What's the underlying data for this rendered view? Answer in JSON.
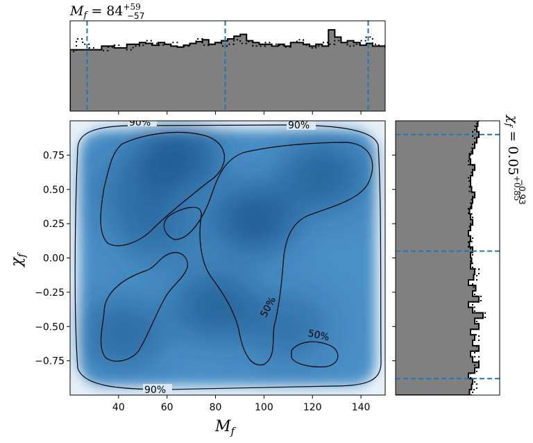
{
  "chart_data": [
    {
      "type": "heatmap",
      "panel": "joint",
      "xlabel": "M_f",
      "ylabel": "χ_f",
      "xlim": [
        20,
        150
      ],
      "ylim": [
        -1,
        1
      ],
      "xticks": [
        40,
        60,
        80,
        100,
        120,
        140
      ],
      "yticks": [
        -0.75,
        -0.5,
        -0.25,
        0.0,
        0.25,
        0.5,
        0.75
      ],
      "xtick_labels": [
        "40",
        "60",
        "80",
        "100",
        "120",
        "140"
      ],
      "ytick_labels": [
        "−0.75",
        "−0.50",
        "−0.25",
        "0.00",
        "0.25",
        "0.50",
        "0.75"
      ],
      "colormap": "Blues",
      "density_peaks": [
        {
          "x": 64,
          "y": 0.73,
          "weight": 1.0
        },
        {
          "x": 96,
          "y": 0.28,
          "weight": 1.0
        },
        {
          "x": 124,
          "y": 0.6,
          "weight": 0.85
        },
        {
          "x": 80,
          "y": -0.35,
          "weight": 0.85
        },
        {
          "x": 42,
          "y": -0.55,
          "weight": 0.7
        },
        {
          "x": 56,
          "y": 0.2,
          "weight": 0.6
        },
        {
          "x": 110,
          "y": -0.5,
          "weight": 0.55
        },
        {
          "x": 45,
          "y": 0.5,
          "weight": 0.5
        }
      ],
      "contour_levels": [
        "50%",
        "90%"
      ],
      "contour_labels": [
        "90%",
        "90%",
        "90%",
        "50%",
        "50%"
      ]
    },
    {
      "type": "histogram",
      "panel": "top-marginal",
      "variable": "M_f",
      "title": "M_f = 84^{+59}_{-57}",
      "title_parts": {
        "base": "M",
        "sub": "f",
        "eq": " = 84",
        "sup": "+59",
        "inf": "−57"
      },
      "xlim": [
        20,
        150
      ],
      "bins_start": 20,
      "bin_width": 2.6,
      "series": [
        {
          "style": "solid",
          "fill": "#808080",
          "values": [
            0.68,
            0.68,
            0.68,
            0.68,
            0.68,
            0.72,
            0.72,
            0.7,
            0.7,
            0.74,
            0.74,
            0.76,
            0.75,
            0.73,
            0.76,
            0.74,
            0.72,
            0.71,
            0.73,
            0.75,
            0.77,
            0.79,
            0.74,
            0.76,
            0.78,
            0.8,
            0.83,
            0.85,
            0.78,
            0.76,
            0.74,
            0.74,
            0.72,
            0.74,
            0.72,
            0.76,
            0.76,
            0.74,
            0.72,
            0.74,
            0.72,
            0.9,
            0.82,
            0.76,
            0.78,
            0.76,
            0.73,
            0.75,
            0.72,
            0.72,
            0.7,
            0.76,
            0.74,
            0.72,
            0.7,
            0.69,
            0.67,
            0.7,
            0.68,
            0.69
          ]
        },
        {
          "style": "dotted",
          "values": [
            0.66,
            0.8,
            0.74,
            0.7,
            0.68,
            0.67,
            0.71,
            0.73,
            0.7,
            0.68,
            0.72,
            0.73,
            0.78,
            0.75,
            0.73,
            0.74,
            0.76,
            0.71,
            0.72,
            0.75,
            0.8,
            0.73,
            0.74,
            0.76,
            0.72,
            0.74,
            0.79,
            0.75,
            0.77,
            0.72,
            0.72,
            0.76,
            0.74,
            0.73,
            0.71,
            0.76,
            0.79,
            0.73,
            0.7,
            0.72,
            0.76,
            0.74,
            0.78,
            0.76,
            0.72,
            0.74,
            0.78,
            0.82,
            0.74,
            0.72,
            0.74,
            0.84,
            0.76,
            0.72,
            0.74,
            0.72,
            0.7,
            0.7,
            0.72,
            0.69
          ]
        }
      ],
      "ylim": [
        0,
        1
      ],
      "quantile_lines": [
        27,
        84,
        143
      ]
    },
    {
      "type": "histogram",
      "panel": "right-marginal",
      "variable": "χ_f",
      "title": "χ_f = 0.05^{+0.85}_{-0.93}",
      "title_parts": {
        "base": "χ",
        "sub": "f",
        "eq": " = 0.05",
        "sup": "+0.85",
        "inf": "−0.93"
      },
      "ylim": [
        -1,
        1
      ],
      "bins_start": -1,
      "bin_width": 0.04,
      "series": [
        {
          "style": "solid",
          "fill": "#808080",
          "values": [
            0.71,
            0.73,
            0.74,
            0.7,
            0.76,
            0.8,
            0.74,
            0.72,
            0.8,
            0.74,
            0.76,
            0.72,
            0.8,
            0.76,
            0.84,
            0.74,
            0.7,
            0.8,
            0.74,
            0.77,
            0.7,
            0.75,
            0.76,
            0.72,
            0.73,
            0.72,
            0.74,
            0.71,
            0.72,
            0.7,
            0.72,
            0.74,
            0.72,
            0.71,
            0.73,
            0.74,
            0.76,
            0.73,
            0.72,
            0.72,
            0.74,
            0.76,
            0.72,
            0.71,
            0.74,
            0.76,
            0.78,
            0.8,
            0.78,
            0.79,
            0.8,
            0.76,
            0.77,
            0.78,
            0.76,
            0.75,
            0.77,
            0.76,
            0.78,
            0.77,
            0.8,
            0.76,
            0.78,
            0.74,
            0.77,
            0.79,
            0.82,
            0.76,
            0.78,
            0.74,
            0.73,
            0.72,
            0.7,
            0.73,
            0.72,
            0.71,
            0.74,
            0.72,
            0.73,
            0.7,
            0.72,
            0.73,
            0.7,
            0.72,
            0.74,
            0.72,
            0.71,
            0.73,
            0.7,
            0.73,
            0.7,
            0.72,
            0.71,
            0.74,
            0.76,
            0.72,
            0.7,
            0.72,
            0.68,
            0.67
          ]
        },
        {
          "style": "dotted",
          "values": [
            0.74,
            0.78,
            0.76,
            0.72,
            0.78,
            0.76,
            0.8,
            0.76,
            0.78,
            0.74,
            0.8,
            0.72,
            0.8,
            0.78,
            0.86,
            0.76,
            0.74,
            0.82,
            0.76,
            0.75,
            0.74,
            0.78,
            0.8,
            0.74,
            0.72,
            0.74,
            0.72,
            0.7,
            0.74,
            0.7,
            0.71,
            0.72,
            0.74,
            0.7,
            0.72,
            0.73,
            0.74,
            0.71,
            0.72,
            0.7,
            0.73,
            0.74,
            0.7,
            0.72,
            0.73,
            0.74,
            0.76,
            0.74,
            0.76,
            0.78,
            0.77,
            0.74,
            0.75,
            0.76,
            0.74,
            0.76,
            0.78,
            0.8,
            0.82,
            0.84,
            0.82,
            0.84,
            0.86,
            0.84,
            0.86,
            0.8,
            0.82,
            0.78,
            0.8,
            0.76,
            0.8,
            0.78,
            0.76,
            0.8,
            0.78,
            0.74,
            0.76,
            0.72,
            0.74,
            0.72,
            0.74,
            0.72,
            0.76,
            0.74,
            0.78,
            0.74,
            0.72,
            0.76,
            0.74,
            0.72,
            0.74,
            0.72,
            0.7,
            0.73,
            0.74,
            0.72,
            0.7,
            0.72,
            0.7,
            0.69
          ]
        }
      ],
      "quantile_lines": [
        -0.88,
        0.05,
        0.9
      ]
    }
  ]
}
